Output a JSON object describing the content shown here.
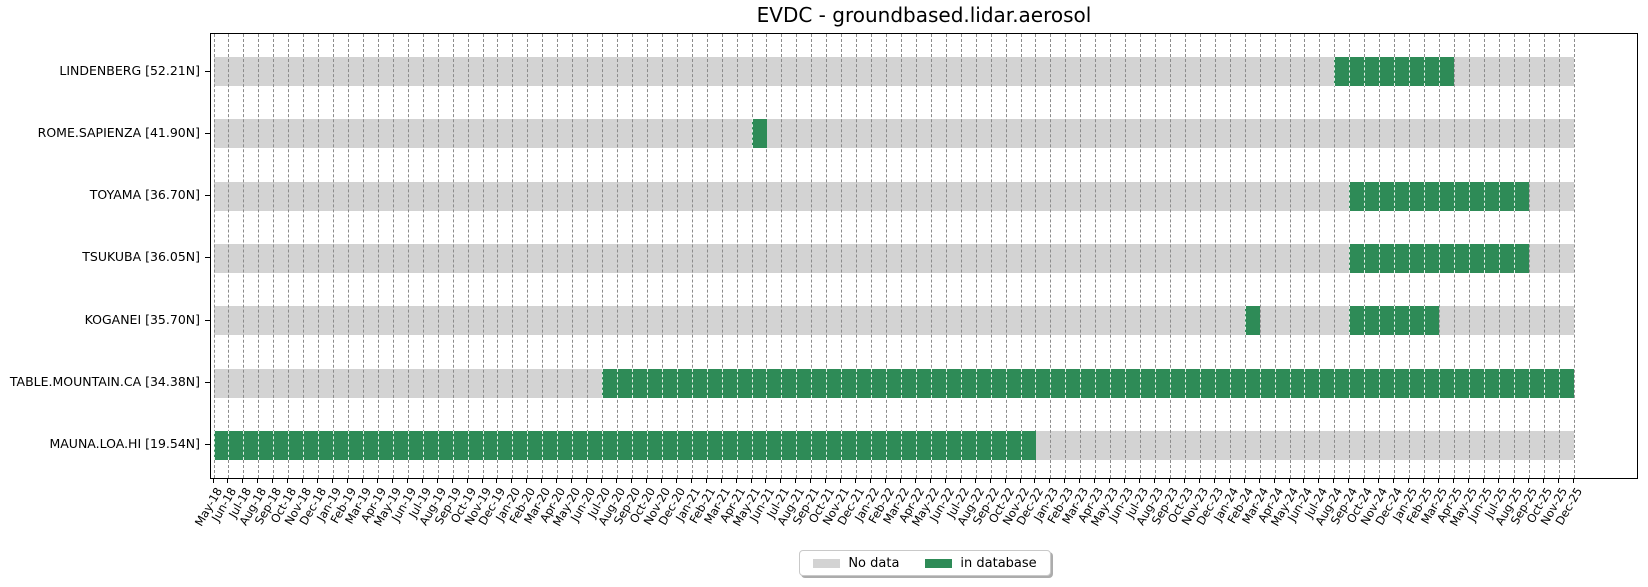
{
  "chart_data": {
    "type": "heatmap",
    "title": "EVDC - groundbased.lidar.aerosol",
    "grid": "vertical-dashed-monthly",
    "x_axis": {
      "tick_format": "Mon-YY",
      "start": "May-18",
      "end": "Dec-25",
      "ticks": [
        "May-18",
        "Jun-18",
        "Jul-18",
        "Aug-18",
        "Sep-18",
        "Oct-18",
        "Nov-18",
        "Dec-18",
        "Jan-19",
        "Feb-19",
        "Mar-19",
        "Apr-19",
        "May-19",
        "Jun-19",
        "Jul-19",
        "Aug-19",
        "Sep-19",
        "Oct-19",
        "Nov-19",
        "Dec-19",
        "Jan-20",
        "Feb-20",
        "Mar-20",
        "Apr-20",
        "May-20",
        "Jun-20",
        "Jul-20",
        "Aug-20",
        "Sep-20",
        "Oct-20",
        "Nov-20",
        "Dec-20",
        "Jan-21",
        "Feb-21",
        "Mar-21",
        "Apr-21",
        "May-21",
        "Jun-21",
        "Jul-21",
        "Aug-21",
        "Sep-21",
        "Oct-21",
        "Nov-21",
        "Dec-21",
        "Jan-22",
        "Feb-22",
        "Mar-22",
        "Apr-22",
        "May-22",
        "Jun-22",
        "Jul-22",
        "Aug-22",
        "Sep-22",
        "Oct-22",
        "Nov-22",
        "Dec-22",
        "Jan-23",
        "Feb-23",
        "Mar-23",
        "Apr-23",
        "May-23",
        "Jun-23",
        "Jul-23",
        "Aug-23",
        "Sep-23",
        "Oct-23",
        "Nov-23",
        "Dec-23",
        "Jan-24",
        "Feb-24",
        "Mar-24",
        "Apr-24",
        "May-24",
        "Jun-24",
        "Jul-24",
        "Aug-24",
        "Sep-24",
        "Oct-24",
        "Nov-24",
        "Dec-24",
        "Jan-25",
        "Feb-25",
        "Mar-25",
        "Apr-25",
        "May-25",
        "Jun-25",
        "Jul-25",
        "Aug-25",
        "Sep-25",
        "Oct-25",
        "Nov-25",
        "Dec-25"
      ]
    },
    "series": [
      {
        "station": "LINDENBERG [52.21N]",
        "in_database": [
          {
            "from": "Aug-24",
            "to": "Mar-25"
          }
        ]
      },
      {
        "station": "ROME.SAPIENZA [41.90N]",
        "in_database": [
          {
            "from": "May-21",
            "to": "May-21"
          }
        ]
      },
      {
        "station": "TOYAMA [36.70N]",
        "in_database": [
          {
            "from": "Sep-24",
            "to": "Aug-25"
          }
        ]
      },
      {
        "station": "TSUKUBA [36.05N]",
        "in_database": [
          {
            "from": "Sep-24",
            "to": "Aug-25"
          }
        ]
      },
      {
        "station": "KOGANEI [35.70N]",
        "in_database": [
          {
            "from": "Feb-24",
            "to": "Feb-24"
          },
          {
            "from": "Sep-24",
            "to": "Feb-25"
          }
        ]
      },
      {
        "station": "TABLE.MOUNTAIN.CA [34.38N]",
        "in_database": [
          {
            "from": "Jul-20",
            "to": "Nov-25"
          }
        ]
      },
      {
        "station": "MAUNA.LOA.HI [19.54N]",
        "in_database": [
          {
            "from": "May-18",
            "to": "Nov-22"
          }
        ]
      }
    ],
    "colors": {
      "in_database": "#2e8b57",
      "no_data": "#d3d3d3",
      "gridline": "#8c8c8c"
    },
    "legend": {
      "position": "bottom-center",
      "items": [
        {
          "label": "No data",
          "color": "#d3d3d3"
        },
        {
          "label": "in database",
          "color": "#2e8b57"
        }
      ]
    }
  }
}
